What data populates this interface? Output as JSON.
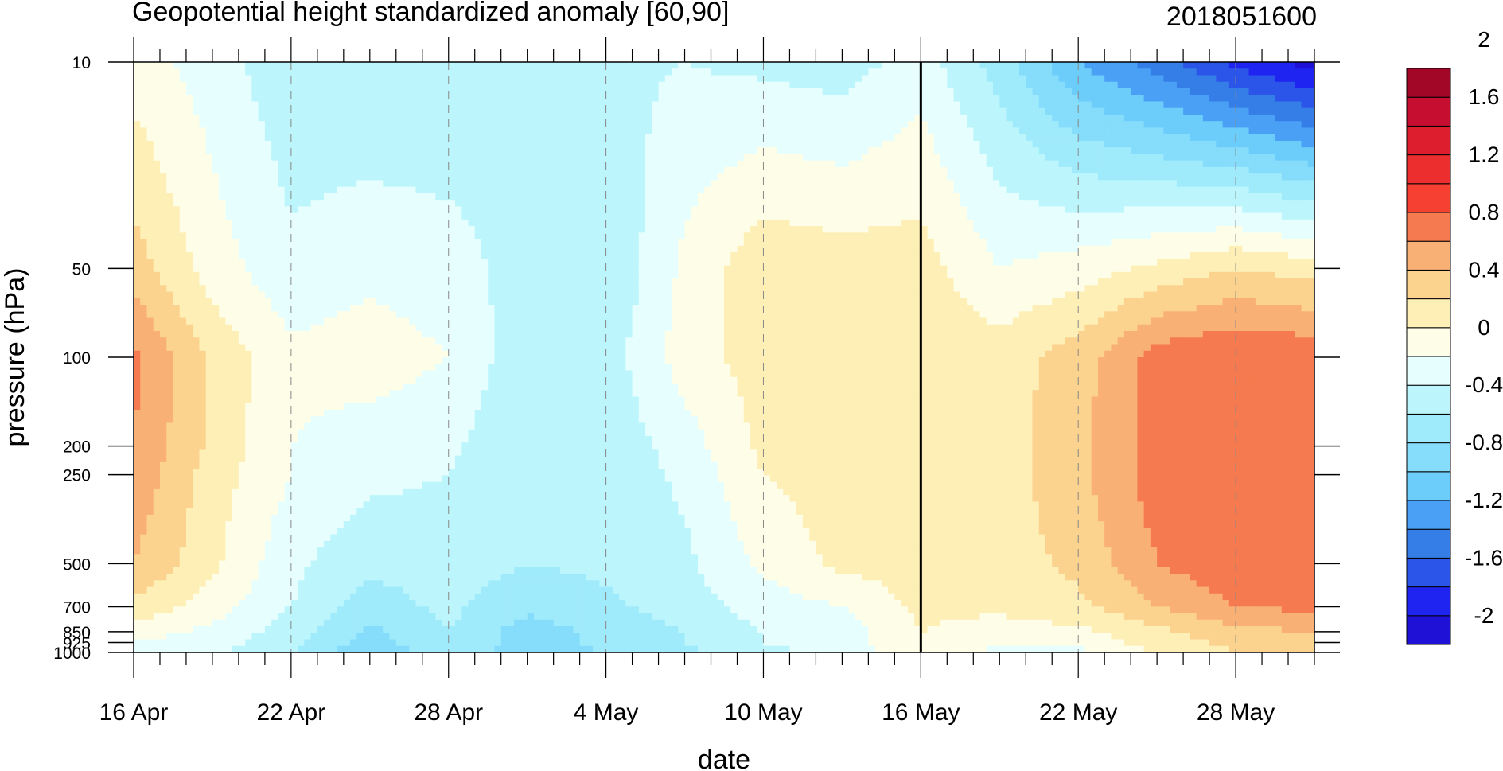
{
  "chart_data": {
    "type": "heatmap",
    "title": "Geopotential height standardized anomaly [60,90]",
    "subtitle": "2018051600",
    "xlabel": "date",
    "ylabel": "pressure (hPa)",
    "y_scale": "log",
    "y_reversed": true,
    "grid": true,
    "legend_position": "right",
    "x_tick_labels": [
      "16 Apr",
      "22 Apr",
      "28 Apr",
      "4 May",
      "10 May",
      "16 May",
      "22 May",
      "28 May"
    ],
    "x_tick_days": [
      0,
      6,
      12,
      18,
      24,
      30,
      36,
      42
    ],
    "x_range_days": [
      0,
      45
    ],
    "analysis_marker": "16 May",
    "y_tick_labels": [
      "10",
      "50",
      "100",
      "200",
      "250",
      "500",
      "700",
      "850",
      "925",
      "1000"
    ],
    "y_ticks": [
      10,
      50,
      100,
      200,
      250,
      500,
      700,
      850,
      925,
      1000
    ],
    "y_range": [
      10,
      1000
    ],
    "colorbar": {
      "label_values": [
        "2",
        "1.6",
        "1.2",
        "0.8",
        "0.4",
        "0",
        "-0.4",
        "-0.8",
        "-1.2",
        "-1.6",
        "-2"
      ],
      "levels": [
        -2.2,
        -2,
        -1.8,
        -1.6,
        -1.4,
        -1.2,
        -1,
        -0.8,
        -0.6,
        -0.4,
        -0.2,
        0,
        0.2,
        0.4,
        0.6,
        0.8,
        1,
        1.2,
        1.4,
        1.6,
        1.8,
        2,
        2.2
      ],
      "colors": [
        "#1f12d6",
        "#1f24f0",
        "#2b55e8",
        "#357ee8",
        "#4aa0f5",
        "#6dcdfa",
        "#85dcfb",
        "#a0ebfb",
        "#bcf6fc",
        "#e6fefe",
        "#fefee8",
        "#fdefb6",
        "#fbd28e",
        "#f9b075",
        "#f57a4f",
        "#f64031",
        "#ec2e2e",
        "#dd1e2f",
        "#c50e30",
        "#a30727"
      ]
    },
    "pressure_levels": [
      10,
      50,
      100,
      200,
      250,
      500,
      700,
      850,
      925,
      1000
    ],
    "days": [
      0,
      3,
      6,
      9,
      12,
      15,
      18,
      21,
      24,
      27,
      30,
      33,
      36,
      39,
      42,
      45
    ],
    "values": [
      [
        -0.1,
        -0.3,
        -0.55,
        -0.6,
        -0.6,
        -0.5,
        -0.45,
        -0.4,
        -0.45,
        -0.5,
        -0.3,
        -0.7,
        -1.2,
        -1.5,
        -1.85,
        -2.1
      ],
      [
        0.3,
        -0.1,
        -0.35,
        -0.25,
        -0.3,
        -0.5,
        -0.6,
        -0.15,
        0.15,
        0.1,
        0.1,
        -0.2,
        -0.1,
        0.05,
        0.2,
        0.1
      ],
      [
        0.65,
        0.15,
        -0.15,
        -0.1,
        -0.2,
        -0.55,
        -0.5,
        -0.1,
        0.1,
        0.15,
        0.15,
        0.1,
        0.3,
        0.7,
        0.8,
        0.75
      ],
      [
        0.6,
        0.15,
        -0.2,
        -0.3,
        -0.35,
        -0.6,
        -0.55,
        -0.3,
        0.05,
        0.1,
        0.1,
        0.1,
        0.35,
        0.7,
        0.8,
        0.75
      ],
      [
        0.55,
        0.1,
        -0.2,
        -0.35,
        -0.4,
        -0.6,
        -0.55,
        -0.35,
        0.0,
        0.1,
        0.1,
        0.1,
        0.35,
        0.7,
        0.8,
        0.75
      ],
      [
        0.4,
        0.05,
        -0.35,
        -0.55,
        -0.5,
        -0.6,
        -0.55,
        -0.45,
        -0.15,
        0.05,
        0.1,
        0.1,
        0.25,
        0.6,
        0.75,
        0.7
      ],
      [
        0.15,
        -0.1,
        -0.4,
        -0.7,
        -0.55,
        -0.75,
        -0.65,
        -0.5,
        -0.3,
        -0.2,
        0.05,
        0.05,
        0.15,
        0.4,
        0.6,
        0.65
      ],
      [
        -0.1,
        -0.25,
        -0.5,
        -0.85,
        -0.6,
        -0.9,
        -0.75,
        -0.6,
        -0.4,
        -0.3,
        0.0,
        -0.1,
        -0.05,
        0.15,
        0.35,
        0.4
      ],
      [
        -0.2,
        -0.3,
        -0.55,
        -0.9,
        -0.6,
        -0.9,
        -0.75,
        -0.6,
        -0.4,
        -0.3,
        0.0,
        -0.2,
        -0.15,
        0.1,
        0.25,
        0.3
      ],
      [
        -0.25,
        -0.35,
        -0.6,
        -1.0,
        -0.65,
        -0.9,
        -0.8,
        -0.65,
        -0.45,
        -0.35,
        0.0,
        -0.25,
        -0.25,
        0.0,
        0.2,
        0.25
      ]
    ]
  }
}
